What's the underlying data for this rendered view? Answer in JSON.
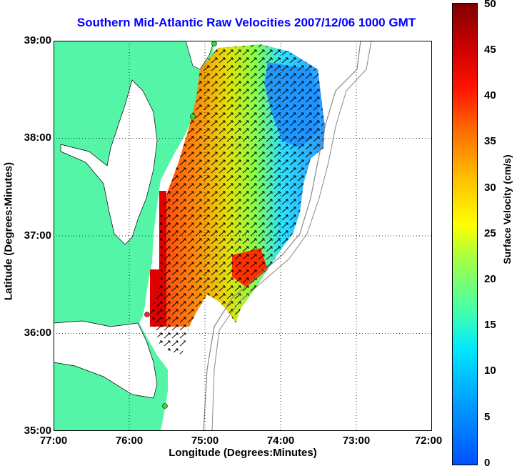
{
  "title": "Southern Mid-Atlantic Raw Velocities 2007/12/06 1000 GMT",
  "x_axis": {
    "label": "Longitude (Degrees:Minutes)",
    "ticks": [
      "77:00",
      "76:00",
      "75:00",
      "74:00",
      "73:00",
      "72:00"
    ]
  },
  "y_axis": {
    "label": "Latitude (Degrees:Minutes)",
    "ticks": [
      "39:00",
      "38:00",
      "37:00",
      "36:00",
      "35:00"
    ]
  },
  "colorbar": {
    "label": "Surface Velocity (cm/s)",
    "ticks": [
      "50",
      "45",
      "40",
      "35",
      "30",
      "25",
      "20",
      "15",
      "10",
      "5",
      "0"
    ],
    "range": [
      0,
      50
    ]
  },
  "colors": {
    "land": "#55f5a8",
    "title": "#0000ff",
    "station": "#33dd33",
    "station_alt": "#ff2020"
  }
}
